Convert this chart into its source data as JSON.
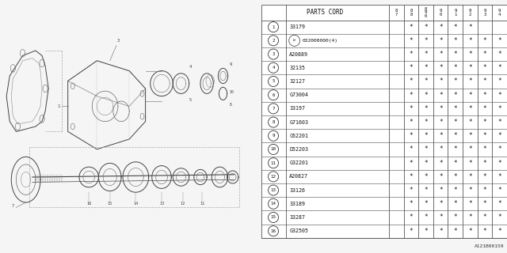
{
  "ref_code": "A121B00159",
  "bg_color": "#f0f0f0",
  "table": {
    "header_col": "PARTS CORD",
    "year_cols": [
      "8\n7",
      "8\n8",
      "8\n9\n0",
      "9\n0",
      "9\n1",
      "9\n2",
      "9\n3",
      "9\n4"
    ],
    "rows": [
      {
        "num": "1",
        "part": "33179",
        "marks": [
          0,
          1,
          1,
          1,
          1,
          1,
          0,
          0
        ]
      },
      {
        "num": "2",
        "part": "W 032008000(4)",
        "marks": [
          0,
          1,
          1,
          1,
          1,
          1,
          1,
          1
        ]
      },
      {
        "num": "3",
        "part": "A20889",
        "marks": [
          0,
          1,
          1,
          1,
          1,
          1,
          1,
          1
        ]
      },
      {
        "num": "4",
        "part": "32135",
        "marks": [
          0,
          1,
          1,
          1,
          1,
          1,
          1,
          1
        ]
      },
      {
        "num": "5",
        "part": "32127",
        "marks": [
          0,
          1,
          1,
          1,
          1,
          1,
          1,
          1
        ]
      },
      {
        "num": "6",
        "part": "G73004",
        "marks": [
          0,
          1,
          1,
          1,
          1,
          1,
          1,
          1
        ]
      },
      {
        "num": "7",
        "part": "33197",
        "marks": [
          0,
          1,
          1,
          1,
          1,
          1,
          1,
          1
        ]
      },
      {
        "num": "8",
        "part": "G71603",
        "marks": [
          0,
          1,
          1,
          1,
          1,
          1,
          1,
          1
        ]
      },
      {
        "num": "9",
        "part": "C62201",
        "marks": [
          0,
          1,
          1,
          1,
          1,
          1,
          1,
          1
        ]
      },
      {
        "num": "10",
        "part": "D52203",
        "marks": [
          0,
          1,
          1,
          1,
          1,
          1,
          1,
          1
        ]
      },
      {
        "num": "11",
        "part": "G32201",
        "marks": [
          0,
          1,
          1,
          1,
          1,
          1,
          1,
          1
        ]
      },
      {
        "num": "12",
        "part": "A20827",
        "marks": [
          0,
          1,
          1,
          1,
          1,
          1,
          1,
          1
        ]
      },
      {
        "num": "13",
        "part": "33126",
        "marks": [
          0,
          1,
          1,
          1,
          1,
          1,
          1,
          1
        ]
      },
      {
        "num": "14",
        "part": "33189",
        "marks": [
          0,
          1,
          1,
          1,
          1,
          1,
          1,
          1
        ]
      },
      {
        "num": "15",
        "part": "33287",
        "marks": [
          0,
          1,
          1,
          1,
          1,
          1,
          1,
          1
        ]
      },
      {
        "num": "16",
        "part": "G32505",
        "marks": [
          0,
          1,
          1,
          1,
          1,
          1,
          1,
          1
        ]
      }
    ]
  }
}
